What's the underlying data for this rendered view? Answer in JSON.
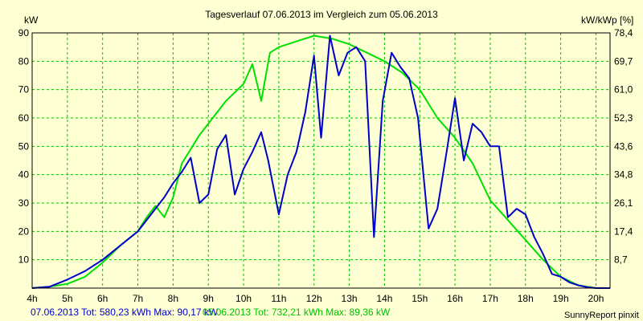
{
  "chart_data": {
    "type": "line",
    "title": "Tagesverlauf 07.06.2013 im Vergleich zum 05.06.2013",
    "ylabel_left": "kW",
    "ylabel_right": "kW/kWp [%]",
    "x_ticks": [
      "4h",
      "5h",
      "6h",
      "7h",
      "8h",
      "9h",
      "10h",
      "11h",
      "12h",
      "13h",
      "14h",
      "15h",
      "16h",
      "17h",
      "18h",
      "19h",
      "20h"
    ],
    "xlim": [
      4,
      20.4
    ],
    "ylim": [
      0,
      90
    ],
    "y_ticks_left": [
      10,
      20,
      30,
      40,
      50,
      60,
      70,
      80,
      90
    ],
    "y_ticks_right": [
      "8,7",
      "17,4",
      "26,1",
      "34,8",
      "43,6",
      "52,3",
      "61,0",
      "69,7",
      "78,4"
    ],
    "series": [
      {
        "name": "07.06.2013",
        "color": "#0000c8",
        "x": [
          4,
          4.5,
          5,
          5.5,
          6,
          6.5,
          7,
          7.5,
          7.75,
          8,
          8.25,
          8.5,
          8.75,
          9,
          9.25,
          9.5,
          9.75,
          10,
          10.25,
          10.5,
          10.7,
          11,
          11.25,
          11.5,
          11.75,
          12,
          12.2,
          12.45,
          12.7,
          12.95,
          13.2,
          13.45,
          13.7,
          13.95,
          14.2,
          14.45,
          14.7,
          14.95,
          15.25,
          15.5,
          15.75,
          16,
          16.25,
          16.5,
          16.75,
          17,
          17.25,
          17.5,
          17.75,
          18,
          18.25,
          18.5,
          18.75,
          19,
          19.25,
          19.5,
          19.75,
          20,
          20.4
        ],
        "y": [
          0,
          0.5,
          3,
          6,
          10,
          15,
          20,
          28,
          32,
          37,
          41,
          46,
          30,
          33,
          49,
          54,
          33,
          42,
          48,
          55,
          45,
          26,
          40,
          48,
          62,
          82,
          53,
          89,
          75,
          83,
          85,
          80,
          18,
          66,
          83,
          78,
          74,
          60,
          21,
          28,
          47,
          67,
          45,
          58,
          55,
          50,
          50,
          25,
          28,
          26,
          18,
          12,
          5,
          4,
          2,
          1,
          0.3,
          0,
          0
        ]
      },
      {
        "name": "05.06.2013",
        "color": "#00e000",
        "x": [
          4,
          4.5,
          5,
          5.5,
          6,
          6.5,
          7,
          7.25,
          7.5,
          7.75,
          8,
          8.25,
          8.5,
          8.75,
          9,
          9.5,
          10,
          10.25,
          10.5,
          10.75,
          11,
          11.5,
          12,
          12.5,
          13,
          13.5,
          14,
          14.5,
          15,
          15.5,
          16,
          16.5,
          17,
          17.5,
          18,
          18.5,
          19,
          19.5,
          20,
          20.4
        ],
        "y": [
          0,
          0.5,
          1.5,
          4,
          9,
          15,
          20,
          25,
          29,
          25,
          32,
          44,
          49,
          54,
          58,
          66,
          72,
          79,
          66,
          83,
          85,
          87,
          89,
          88,
          86,
          83,
          80,
          76,
          70,
          60,
          53,
          44,
          31,
          24,
          17,
          10,
          4,
          1,
          0,
          0
        ]
      }
    ]
  },
  "footer": {
    "series1_text": "07.06.2013 Tot: 580,23 kWh Max: 90,17 kW",
    "series2_text": "05.06.2013 Tot: 732,21 kWh Max: 89,36 kW",
    "brand": "SunnyReport pinxit"
  },
  "colors": {
    "series1": "#0000c8",
    "series2": "#00e000",
    "grid": "#00c000",
    "background": "#ffffd4"
  }
}
